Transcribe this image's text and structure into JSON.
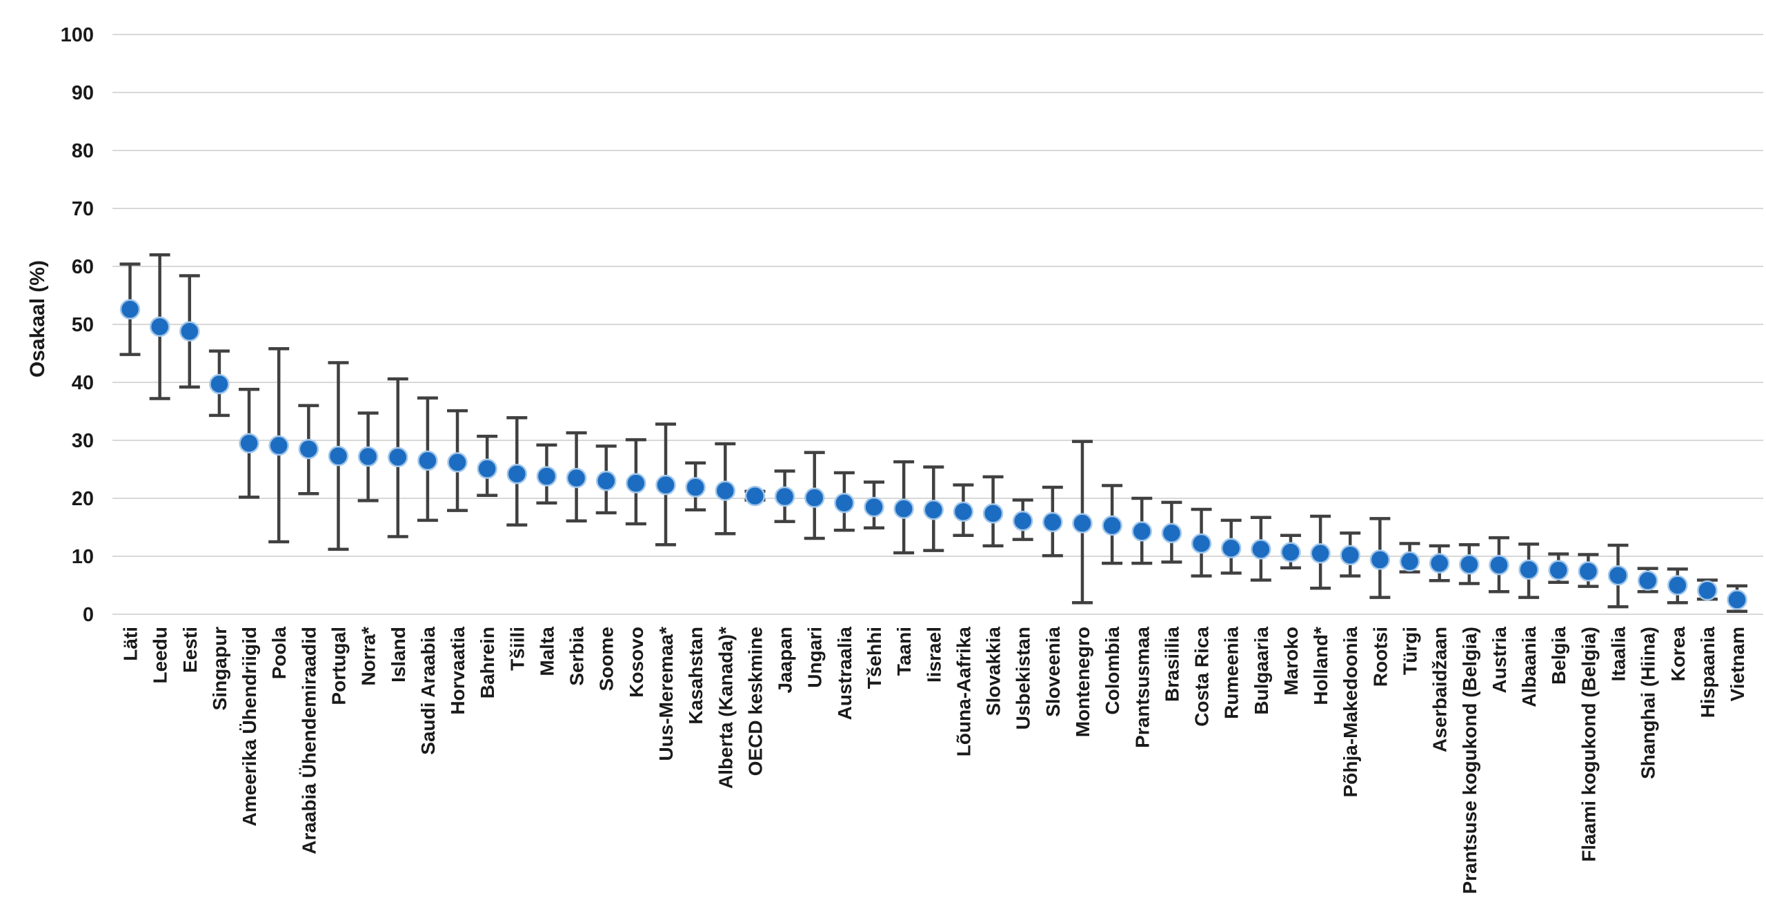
{
  "chart_data": {
    "type": "scatter",
    "title": "",
    "ylabel": "Osakaal (%)",
    "xlabel": "",
    "ylim": [
      0,
      100
    ],
    "yticks": [
      0,
      10,
      20,
      30,
      40,
      50,
      60,
      70,
      80,
      90,
      100
    ],
    "grid": true,
    "legend": "none",
    "marker_style": "circle-with-error-bars",
    "categories": [
      "Läti",
      "Leedu",
      "Eesti",
      "Singapur",
      "Ameerika Ühendriigid",
      "Poola",
      "Araabia Ühendemiraadid",
      "Portugal",
      "Norra*",
      "Island",
      "Saudi Araabia",
      "Horvaatia",
      "Bahrein",
      "Tšiili",
      "Malta",
      "Serbia",
      "Soome",
      "Kosovo",
      "Uus-Meremaa*",
      "Kasahstan",
      "Alberta (Kanada)*",
      "OECD keskmine",
      "Jaapan",
      "Ungari",
      "Austraalia",
      "Tšehhi",
      "Taani",
      "Iisrael",
      "Lõuna-Aafrika",
      "Slovakkia",
      "Usbekistan",
      "Sloveenia",
      "Montenegro",
      "Colombia",
      "Prantsusmaa",
      "Brasiilia",
      "Costa Rica",
      "Rumeenia",
      "Bulgaaria",
      "Maroko",
      "Holland*",
      "Põhja-Makedoonia",
      "Rootsi",
      "Türgi",
      "Aserbaidžaan",
      "Prantsuse kogukond (Belgia)",
      "Austria",
      "Albaania",
      "Belgia",
      "Flaami kogukond (Belgia)",
      "Itaalia",
      "Shanghai (Hiina)",
      "Korea",
      "Hispaania",
      "Vietnam"
    ],
    "series": [
      {
        "name": "Osakaal (%)",
        "values": [
          52.6,
          49.6,
          48.8,
          39.7,
          29.5,
          29.1,
          28.5,
          27.3,
          27.2,
          27.1,
          26.5,
          26.2,
          25.1,
          24.2,
          23.8,
          23.5,
          23.0,
          22.6,
          22.3,
          21.9,
          21.3,
          20.4,
          20.3,
          20.1,
          19.2,
          18.5,
          18.2,
          18.0,
          17.7,
          17.4,
          16.1,
          15.9,
          15.7,
          15.3,
          14.3,
          14.0,
          12.2,
          11.4,
          11.2,
          10.7,
          10.5,
          10.2,
          9.4,
          9.1,
          8.8,
          8.6,
          8.5,
          7.7,
          7.6,
          7.4,
          6.7,
          5.8,
          5.0,
          4.1,
          2.5
        ],
        "ci_low": [
          44.8,
          37.2,
          39.2,
          34.3,
          20.2,
          12.5,
          20.8,
          11.2,
          19.6,
          13.4,
          16.2,
          17.9,
          20.5,
          15.4,
          19.2,
          16.1,
          17.5,
          15.6,
          12.0,
          18.0,
          13.9,
          19.7,
          16.0,
          13.1,
          14.5,
          14.9,
          10.6,
          11.0,
          13.6,
          11.8,
          12.9,
          10.1,
          2.0,
          8.8,
          8.8,
          9.0,
          6.6,
          7.1,
          5.9,
          8.0,
          4.5,
          6.6,
          2.9,
          7.3,
          5.8,
          5.3,
          3.9,
          2.9,
          5.5,
          4.8,
          1.3,
          3.9,
          2.0,
          2.6,
          0.5
        ],
        "ci_high": [
          60.4,
          62.0,
          58.4,
          45.4,
          38.8,
          45.8,
          36.0,
          43.4,
          34.7,
          40.6,
          37.3,
          35.1,
          30.7,
          33.9,
          29.2,
          31.3,
          29.0,
          30.1,
          32.8,
          26.1,
          29.4,
          21.2,
          24.7,
          27.9,
          24.4,
          22.8,
          26.3,
          25.4,
          22.3,
          23.7,
          19.7,
          21.9,
          29.8,
          22.2,
          20.0,
          19.3,
          18.1,
          16.2,
          16.7,
          13.6,
          16.9,
          14.0,
          16.5,
          12.2,
          11.8,
          12.0,
          13.2,
          12.1,
          10.4,
          10.3,
          11.9,
          7.9,
          7.8,
          5.9,
          4.9
        ]
      }
    ],
    "colors": {
      "marker_fill": "#1C6DC1",
      "marker_halo": "#A3C7EA",
      "error_bar": "#404040",
      "gridline": "#D8D8D8",
      "text": "#1A1A1A",
      "background": "#FFFFFF"
    }
  }
}
